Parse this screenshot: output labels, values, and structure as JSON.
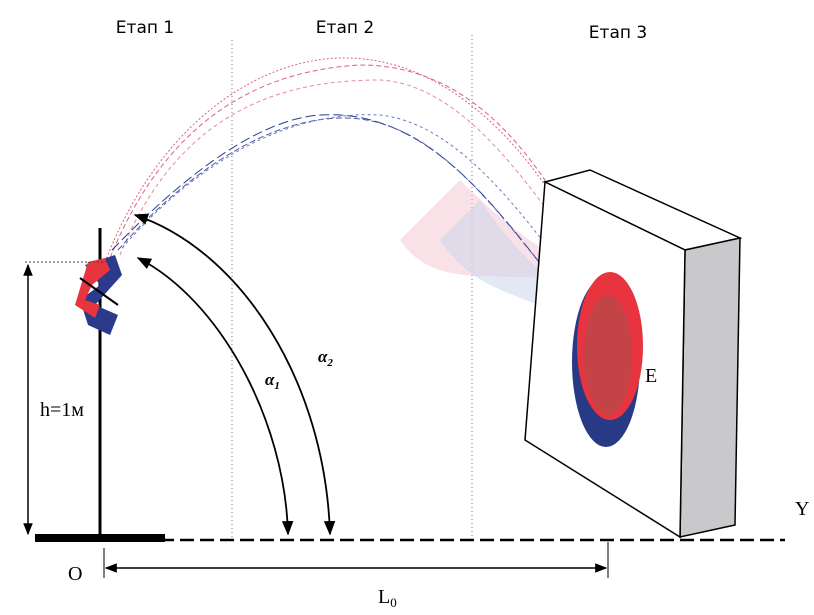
{
  "stages": [
    "Етап 1",
    "Етап 2",
    "Етап 3"
  ],
  "height_label": "h=1м",
  "angles": [
    {
      "symbol": "α",
      "sub": "1"
    },
    {
      "symbol": "α",
      "sub": "2"
    }
  ],
  "target_label": "E",
  "axis_label": "Y",
  "origin_label": "O",
  "distance_label": {
    "symbol": "L",
    "sub": "0"
  }
}
